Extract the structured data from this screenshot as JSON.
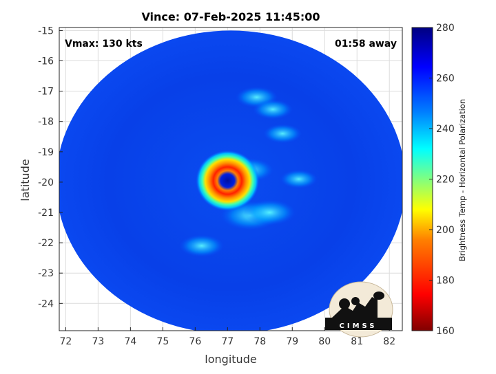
{
  "chart_data": {
    "type": "heatmap",
    "title": "Vince: 07-Feb-2025 11:45:00",
    "annotations": {
      "vmax": "Vmax: 130 kts",
      "time_away": "01:58 away"
    },
    "xlabel": "longitude",
    "ylabel": "latitude",
    "xlim": [
      71.8,
      82.4
    ],
    "ylim": [
      -24.9,
      -14.9
    ],
    "x_ticks": [
      72,
      73,
      74,
      75,
      76,
      77,
      78,
      79,
      80,
      81,
      82
    ],
    "y_ticks": [
      -15,
      -16,
      -17,
      -18,
      -19,
      -20,
      -21,
      -22,
      -23,
      -24
    ],
    "grid": true,
    "colorbar": {
      "label": "Brightness Temp - Horizontal Polarization",
      "range": [
        160,
        280
      ],
      "ticks": [
        280,
        260,
        240,
        220,
        200,
        180,
        160
      ],
      "colormap": [
        "#800000",
        "#ff0000",
        "#ff8000",
        "#ffff00",
        "#80ff80",
        "#00ffff",
        "#0080ff",
        "#0000ff",
        "#000080"
      ]
    },
    "swath": {
      "center": [
        77.1,
        -20.0
      ],
      "radius_lon": 5.4,
      "radius_lat": 5.0,
      "background_value": 263
    },
    "eye": {
      "center": [
        77.0,
        -19.95
      ],
      "eye_value": 268,
      "eyewall_value": 188
    },
    "features": [
      {
        "lon": 77.7,
        "lat": -21.1,
        "value": 232
      },
      {
        "lon": 78.3,
        "lat": -21.0,
        "value": 238
      },
      {
        "lon": 77.7,
        "lat": -19.6,
        "value": 242
      },
      {
        "lon": 77.9,
        "lat": -17.2,
        "value": 246
      },
      {
        "lon": 78.4,
        "lat": -17.6,
        "value": 248
      },
      {
        "lon": 78.7,
        "lat": -18.4,
        "value": 249
      },
      {
        "lon": 76.2,
        "lat": -22.1,
        "value": 244
      },
      {
        "lon": 79.2,
        "lat": -19.9,
        "value": 250
      }
    ],
    "logo": "CIMSS"
  }
}
